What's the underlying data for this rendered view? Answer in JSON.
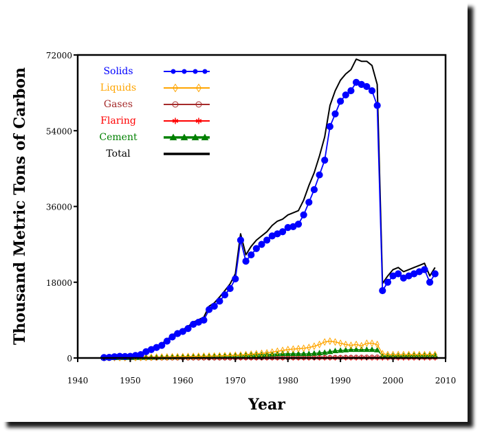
{
  "chart_data": {
    "type": "line",
    "title": "",
    "xlabel": "Year",
    "ylabel": "Thousand Metric Tons of Carbon",
    "xlim": [
      1940,
      2010
    ],
    "ylim": [
      0,
      72000
    ],
    "x_ticks": [
      "1940",
      "1950",
      "1960",
      "1970",
      "1980",
      "1990",
      "2000",
      "2010"
    ],
    "y_ticks": [
      "0",
      "18000",
      "36000",
      "54000",
      "72000"
    ],
    "legend_position": "top-left",
    "grid": false,
    "x": [
      1945,
      1946,
      1947,
      1948,
      1949,
      1950,
      1951,
      1952,
      1953,
      1954,
      1955,
      1956,
      1957,
      1958,
      1959,
      1960,
      1961,
      1962,
      1963,
      1964,
      1965,
      1966,
      1967,
      1968,
      1969,
      1970,
      1971,
      1972,
      1973,
      1974,
      1975,
      1976,
      1977,
      1978,
      1979,
      1980,
      1981,
      1982,
      1983,
      1984,
      1985,
      1986,
      1987,
      1988,
      1989,
      1990,
      1991,
      1992,
      1993,
      1994,
      1995,
      1996,
      1997,
      1998,
      1999,
      2000,
      2001,
      2002,
      2003,
      2004,
      2005,
      2006,
      2007,
      2008
    ],
    "series": [
      {
        "name": "Solids",
        "color": "#0000ff",
        "marker": "filled-circle",
        "values": [
          100,
          150,
          300,
          400,
          350,
          400,
          600,
          800,
          1500,
          2000,
          2500,
          3000,
          4000,
          5000,
          5800,
          6300,
          7000,
          8000,
          8500,
          9000,
          11500,
          12300,
          13500,
          15000,
          16500,
          18800,
          28000,
          23000,
          24500,
          26000,
          27000,
          28000,
          29000,
          29500,
          30000,
          31000,
          31200,
          31800,
          34000,
          37000,
          40000,
          43500,
          47000,
          55000,
          58000,
          61000,
          62500,
          63500,
          65500,
          65000,
          64500,
          63500,
          60000,
          16000,
          18000,
          19500,
          20000,
          19000,
          19500,
          20000,
          20500,
          21000,
          18000,
          20000
        ]
      },
      {
        "name": "Liquids",
        "color": "#ffa500",
        "marker": "open-diamond",
        "values": [
          50,
          60,
          80,
          90,
          90,
          100,
          100,
          120,
          150,
          170,
          200,
          220,
          250,
          280,
          300,
          320,
          350,
          380,
          400,
          430,
          450,
          480,
          520,
          560,
          600,
          650,
          700,
          800,
          900,
          1000,
          1100,
          1200,
          1400,
          1600,
          1800,
          2000,
          2100,
          2200,
          2300,
          2500,
          2800,
          3200,
          3800,
          4000,
          3800,
          3500,
          3200,
          3000,
          3200,
          2900,
          3500,
          3500,
          3200,
          1000,
          800,
          800,
          800,
          800,
          800,
          800,
          800,
          800,
          800,
          800
        ]
      },
      {
        "name": "Gases",
        "color": "#a52a2a",
        "marker": "open-circle",
        "values": [
          0,
          0,
          0,
          0,
          0,
          0,
          0,
          0,
          0,
          0,
          0,
          0,
          0,
          0,
          0,
          0,
          0,
          0,
          0,
          0,
          0,
          0,
          0,
          0,
          0,
          0,
          50,
          50,
          50,
          50,
          50,
          60,
          60,
          60,
          70,
          70,
          80,
          80,
          90,
          100,
          100,
          110,
          120,
          130,
          140,
          150,
          160,
          170,
          180,
          190,
          200,
          210,
          220,
          200,
          200,
          200,
          200,
          200,
          200,
          200,
          200,
          200,
          200,
          200
        ]
      },
      {
        "name": "Flaring",
        "color": "#ff0000",
        "marker": "asterisk",
        "values": [
          0,
          0,
          0,
          0,
          0,
          0,
          0,
          0,
          0,
          0,
          0,
          0,
          0,
          0,
          0,
          0,
          0,
          0,
          0,
          0,
          0,
          0,
          0,
          0,
          0,
          0,
          0,
          0,
          0,
          0,
          0,
          0,
          0,
          0,
          0,
          0,
          0,
          0,
          0,
          0,
          0,
          0,
          0,
          0,
          0,
          0,
          0,
          0,
          0,
          0,
          0,
          0,
          0,
          0,
          0,
          0,
          0,
          0,
          0,
          0,
          0,
          0,
          0,
          0
        ]
      },
      {
        "name": "Cement",
        "color": "#008000",
        "marker": "filled-triangle",
        "values": [
          50,
          60,
          70,
          80,
          90,
          100,
          110,
          130,
          150,
          170,
          200,
          220,
          240,
          260,
          280,
          300,
          320,
          340,
          360,
          380,
          400,
          420,
          450,
          480,
          500,
          550,
          600,
          650,
          700,
          750,
          800,
          850,
          900,
          950,
          1000,
          1000,
          1000,
          1000,
          1000,
          1000,
          1100,
          1200,
          1300,
          1500,
          1700,
          1800,
          1900,
          2000,
          2000,
          2000,
          2000,
          2000,
          1900,
          500,
          500,
          500,
          500,
          500,
          600,
          600,
          600,
          600,
          600,
          600
        ]
      },
      {
        "name": "Total",
        "color": "#000000",
        "marker": "none",
        "values": [
          200,
          250,
          400,
          500,
          500,
          600,
          800,
          1000,
          1700,
          2200,
          2800,
          3400,
          4300,
          5400,
          6200,
          6700,
          7500,
          8500,
          9100,
          9700,
          12300,
          13100,
          14500,
          16000,
          17600,
          20000,
          29500,
          24500,
          26500,
          28000,
          29000,
          30000,
          31500,
          32500,
          33000,
          34000,
          34500,
          35000,
          37500,
          41000,
          44000,
          48000,
          52500,
          60000,
          63500,
          66000,
          67500,
          68500,
          71000,
          70500,
          70500,
          69500,
          65000,
          17700,
          19500,
          21000,
          21500,
          20500,
          21000,
          21500,
          22000,
          22500,
          19500,
          21500
        ]
      }
    ]
  }
}
